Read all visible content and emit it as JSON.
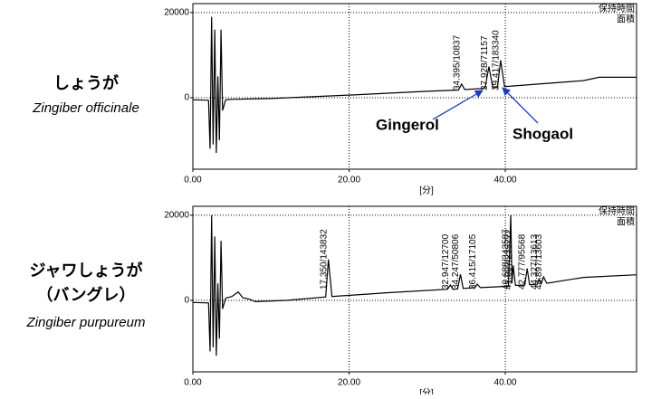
{
  "chart_data": [
    {
      "type": "line",
      "title_lines": [
        "しょうが",
        "Zingiber officinale"
      ],
      "corner_labels": [
        "保持時間",
        "面積"
      ],
      "x_label": "[分]",
      "x": [
        0,
        2.0,
        2.2,
        2.4,
        2.6,
        2.8,
        3.0,
        3.2,
        3.4,
        3.6,
        3.8,
        4.2,
        5,
        10,
        20,
        30,
        34.0,
        34.4,
        34.8,
        37.4,
        37.9,
        38.4,
        39.0,
        39.4,
        39.9,
        45,
        50,
        52,
        56.8
      ],
      "values": [
        -500,
        -600,
        -12000,
        19000,
        -11000,
        16000,
        -13000,
        5000,
        -10000,
        16000,
        -3000,
        -500,
        -400,
        -200,
        600,
        1500,
        1800,
        3200,
        1900,
        2200,
        7300,
        2300,
        2400,
        8800,
        2600,
        3300,
        4000,
        4800,
        4800
      ],
      "xlim": [
        0,
        56.8
      ],
      "ylim": [
        -16800,
        22100
      ],
      "xticks": [
        {
          "value": 0,
          "label": "0.00"
        },
        {
          "value": 20,
          "label": "20.00"
        },
        {
          "value": 40,
          "label": "40.00"
        }
      ],
      "yticks": [
        0,
        20000
      ],
      "grid": true,
      "color": "#000000",
      "peak_labels": [
        "34.395/10837",
        "37.928/71157",
        "39.417/183340"
      ],
      "annotations": [
        "Gingerol",
        "Shogaol"
      ]
    },
    {
      "type": "line",
      "title_lines": [
        "ジャワしょうが",
        "（バングレ）",
        "Zingiber purpureum"
      ],
      "corner_labels": [
        "保持時間",
        "面積"
      ],
      "x_label": "[分]",
      "x": [
        0,
        2.0,
        2.2,
        2.4,
        2.6,
        2.8,
        3.0,
        3.2,
        3.4,
        3.6,
        3.8,
        4.2,
        5,
        5.8,
        6.4,
        7.2,
        8,
        12,
        17.0,
        17.35,
        17.8,
        25,
        32.6,
        32.95,
        33.3,
        33.9,
        34.25,
        34.6,
        36.1,
        36.4,
        36.8,
        40.4,
        40.7,
        40.85,
        41.0,
        41.3,
        42.5,
        42.8,
        43.1,
        44.1,
        44.3,
        44.6,
        44.9,
        45.3,
        50,
        56.8
      ],
      "values": [
        -500,
        -600,
        -12000,
        20000,
        -11000,
        15000,
        -13000,
        4000,
        -9000,
        14000,
        -2000,
        500,
        900,
        2000,
        600,
        300,
        -300,
        0,
        800,
        9600,
        900,
        1800,
        2600,
        3600,
        2600,
        2700,
        6100,
        2800,
        3000,
        3800,
        3000,
        3300,
        20000,
        4000,
        8200,
        3500,
        3600,
        7500,
        3700,
        3800,
        5000,
        3900,
        5500,
        4000,
        5400,
        6000
      ],
      "xlim": [
        0,
        56.8
      ],
      "ylim": [
        -16800,
        22100
      ],
      "xticks": [
        {
          "value": 0,
          "label": "0.00"
        },
        {
          "value": 20,
          "label": "20.00"
        },
        {
          "value": 40,
          "label": "40.00"
        }
      ],
      "yticks": [
        0,
        20000
      ],
      "grid": true,
      "color": "#000000",
      "peak_labels": [
        "17.350/143832",
        "32.947/12700",
        "34.247/50806",
        "36.415/17105",
        "40.688/343587",
        "41.007/235272",
        "42.777/95568",
        "44.327/13613",
        "44.897/13603"
      ]
    }
  ]
}
